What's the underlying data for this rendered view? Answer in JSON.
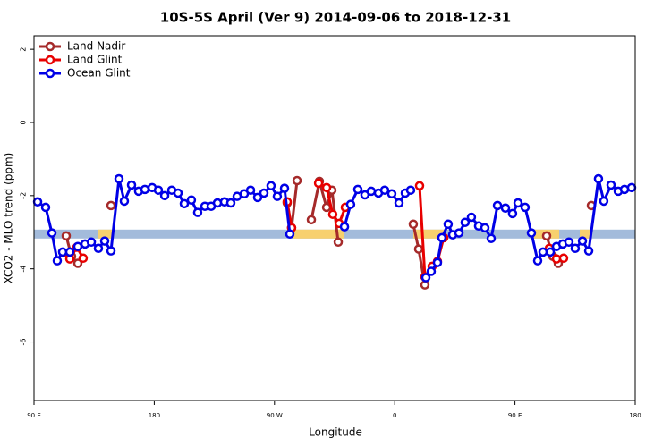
{
  "chart_data": {
    "type": "line",
    "title": "10S-5S April (Ver 9)   2014-09-06 to 2018-12-31",
    "x_label": "Longitude",
    "y_label": "XCO2 - MLO trend (ppm)",
    "xlim": [
      90,
      540
    ],
    "ylim": [
      -7.6,
      2.37
    ],
    "xticks": [
      {
        "value": 90,
        "label": "90 E"
      },
      {
        "value": 180,
        "label": "180"
      },
      {
        "value": 270,
        "label": "90 W"
      },
      {
        "value": 360,
        "label": "0"
      },
      {
        "value": 450,
        "label": "90 E"
      },
      {
        "value": 540,
        "label": "180"
      }
    ],
    "yticks": [
      2,
      0,
      -2,
      -4,
      -6
    ],
    "legend": "top-left",
    "band_level": -3.05,
    "band_color": "#a3bbdb",
    "land_color": "#f7d06e",
    "land_spans": [
      [
        138.2,
        148.3
      ],
      [
        284.2,
        322.4
      ],
      [
        373.9,
        397.4
      ],
      [
        464.3,
        483.1
      ],
      [
        498.5,
        506.5
      ]
    ],
    "series": [
      {
        "name": "Land Nadir",
        "color": "#a52a2a",
        "x": [
          114.1,
          118.1,
          122.8,
          null,
          147.6,
          null,
          279.5,
          282.8,
          286.9,
          null,
          297.6,
          303.6,
          309.0,
          313.0,
          317.7,
          null,
          373.9,
          377.9,
          382.6,
          null,
          473.7,
          478.4,
          482.4,
          null,
          507.2
        ],
        "values": [
          -3.1,
          -3.66,
          -3.85,
          null,
          -2.27,
          null,
          -2.2,
          -2.88,
          -1.59,
          null,
          -2.66,
          -1.61,
          -2.32,
          -1.85,
          -3.27,
          null,
          -2.78,
          -3.46,
          -4.44,
          null,
          -3.1,
          -3.66,
          -3.85,
          null,
          -2.27
        ]
      },
      {
        "name": "Land Glint",
        "color": "#e80000",
        "x": [
          112.1,
          116.8,
          122.1,
          126.8,
          null,
          279.5,
          282.8,
          null,
          303.0,
          309.0,
          313.6,
          318.4,
          323.0,
          null,
          378.6,
          382.6,
          388.0,
          392.0,
          396.7,
          null,
          475.7,
          481.1,
          486.4
        ],
        "values": [
          -3.56,
          -3.73,
          -3.41,
          -3.71,
          null,
          -2.17,
          -2.88,
          null,
          -1.66,
          -1.78,
          -2.51,
          -2.76,
          -2.32,
          null,
          -1.73,
          -4.22,
          -3.93,
          -3.8,
          -3.15,
          null,
          -3.44,
          -3.73,
          -3.71
        ]
      },
      {
        "name": "Ocean Glint",
        "color": "#0000e6",
        "x": [
          92.7,
          98.7,
          103.4,
          107.4,
          111.4,
          116.8,
          122.8,
          128.2,
          132.9,
          138.2,
          142.9,
          147.6,
          153.6,
          157.6,
          163.0,
          168.3,
          173.0,
          178.4,
          183.1,
          187.8,
          193.1,
          197.8,
          202.5,
          207.8,
          212.5,
          217.9,
          222.6,
          227.3,
          232.6,
          237.3,
          242.0,
          247.4,
          252.1,
          257.4,
          262.1,
          267.4,
          272.1,
          277.5,
          281.5,
          null,
          322.4,
          327.0,
          332.4,
          337.7,
          342.4,
          347.8,
          352.5,
          357.8,
          363.2,
          367.9,
          371.9,
          null,
          383.3,
          387.3,
          392.0,
          395.3,
          400.0,
          403.4,
          408.1,
          412.7,
          417.4,
          422.8,
          427.5,
          432.2,
          436.9,
          442.9,
          448.2,
          452.3,
          457.6,
          462.3,
          467.0,
          471.0,
          476.4,
          481.1,
          485.8,
          490.4,
          495.1,
          500.5,
          505.2,
          512.5,
          516.5,
          521.9,
          527.3,
          532.0,
          537.3
        ],
        "values": [
          -2.17,
          -2.32,
          -3.02,
          -3.78,
          -3.54,
          -3.54,
          -3.39,
          -3.32,
          -3.27,
          -3.44,
          -3.24,
          -3.51,
          -1.54,
          -2.15,
          -1.71,
          -1.88,
          -1.83,
          -1.78,
          -1.85,
          -2.0,
          -1.85,
          -1.93,
          -2.22,
          -2.12,
          -2.46,
          -2.29,
          -2.29,
          -2.2,
          -2.17,
          -2.2,
          -2.02,
          -1.95,
          -1.85,
          -2.05,
          -1.93,
          -1.73,
          -2.02,
          -1.8,
          -3.05,
          null,
          -2.85,
          -2.24,
          -1.83,
          -1.98,
          -1.88,
          -1.93,
          -1.85,
          -1.95,
          -2.2,
          -1.93,
          -1.85,
          null,
          -4.24,
          -4.07,
          -3.83,
          -3.15,
          -2.78,
          -3.07,
          -3.02,
          -2.73,
          -2.59,
          -2.83,
          -2.88,
          -3.17,
          -2.27,
          -2.34,
          -2.49,
          -2.2,
          -2.32,
          -3.02,
          -3.78,
          -3.54,
          -3.54,
          -3.39,
          -3.32,
          -3.27,
          -3.44,
          -3.24,
          -3.51,
          -1.54,
          -2.15,
          -1.71,
          -1.88,
          -1.83,
          -1.78
        ]
      }
    ]
  }
}
